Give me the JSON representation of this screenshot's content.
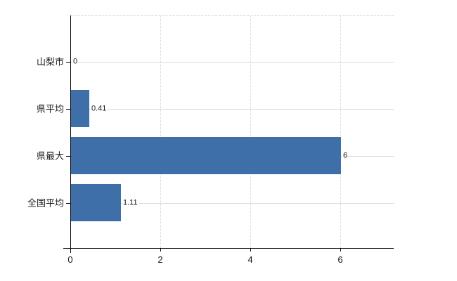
{
  "chart_data": {
    "type": "bar",
    "orientation": "horizontal",
    "title": "",
    "xlabel": "",
    "ylabel": "",
    "categories": [
      "山梨市",
      "県平均",
      "県最大",
      "全国平均"
    ],
    "values": [
      0,
      0.41,
      6,
      1.11
    ],
    "value_labels": [
      "0",
      "0.41",
      "6",
      "1.11"
    ],
    "x_ticks": [
      0,
      2,
      4,
      6
    ],
    "x_tick_labels": [
      "0",
      "2",
      "4",
      "6"
    ],
    "xlim": [
      0,
      7.19
    ],
    "grid": true,
    "legend": false,
    "bar_color": "#3e6fa8"
  },
  "colors": {
    "bar": "#3e6fa8",
    "grid": "#d9d9d9",
    "axis": "#000000",
    "background": "#ffffff",
    "text": "#1a1a1a"
  }
}
